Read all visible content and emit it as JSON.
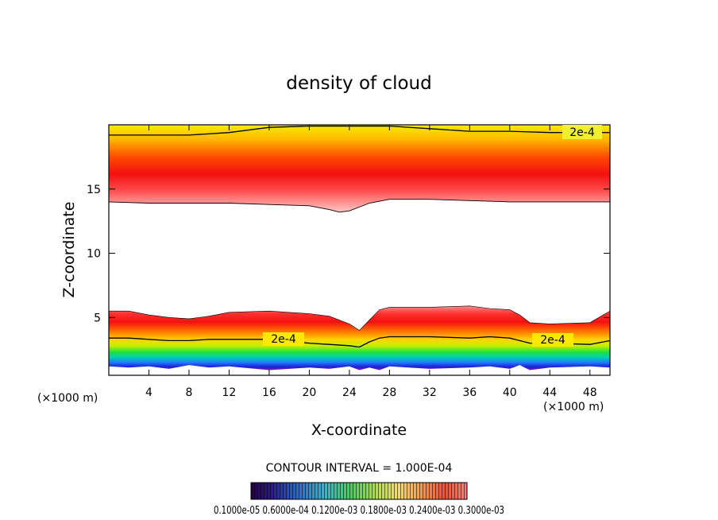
{
  "chart_data": {
    "type": "heatmap",
    "title": "density of cloud",
    "xlabel": "X-coordinate",
    "ylabel": "Z-coordinate",
    "x_unit_label": "(×1000 m)",
    "x_unit_label_right": "(×1000 m)",
    "xlim": [
      0,
      50
    ],
    "ylim": [
      0.5,
      20
    ],
    "x_ticks": [
      4,
      8,
      12,
      16,
      20,
      24,
      28,
      32,
      36,
      40,
      44,
      48
    ],
    "y_ticks": [
      5,
      10,
      15
    ],
    "contour_labels": [
      "2e-4",
      "2e-4",
      "2e-4"
    ],
    "contour_interval_text": "CONTOUR INTERVAL = 1.000E-04",
    "colorbar_labels_text": "0.1000e-05 0.6000e-04 0.1200e-03 0.1800e-03 0.2400e-03 0.3000e-03",
    "colorbar_range": [
      1e-06,
      0.0003
    ],
    "upper_layer": {
      "x": [
        0,
        4,
        8,
        12,
        16,
        20,
        22,
        23,
        24,
        26,
        28,
        32,
        36,
        40,
        44,
        48,
        50
      ],
      "bottom": [
        14.0,
        13.9,
        13.9,
        13.9,
        13.8,
        13.7,
        13.4,
        13.2,
        13.3,
        13.9,
        14.2,
        14.2,
        14.1,
        14.0,
        14.0,
        14.0,
        14.0
      ],
      "peak": [
        15.6,
        15.6,
        15.6,
        15.6,
        15.5,
        15.3,
        15.0,
        14.9,
        15.0,
        15.4,
        15.6,
        15.6,
        15.6,
        15.6,
        15.6,
        15.6,
        15.6
      ],
      "contour_2e4": [
        19.2,
        19.2,
        19.2,
        19.4,
        19.8,
        19.9,
        19.9,
        19.9,
        19.9,
        19.9,
        19.9,
        19.7,
        19.5,
        19.5,
        19.4,
        19.4,
        19.4
      ]
    },
    "lower_layer": {
      "x": [
        0,
        2,
        4,
        6,
        8,
        10,
        12,
        16,
        20,
        22,
        24,
        25,
        26,
        27,
        28,
        32,
        36,
        38,
        40,
        41,
        42,
        44,
        48,
        50
      ],
      "top": [
        5.5,
        5.5,
        5.2,
        5.0,
        4.9,
        5.1,
        5.4,
        5.5,
        5.3,
        5.1,
        4.5,
        4.0,
        4.8,
        5.6,
        5.8,
        5.8,
        5.9,
        5.7,
        5.6,
        5.2,
        4.6,
        4.5,
        4.6,
        5.5
      ],
      "contour_2e4": [
        3.4,
        3.4,
        3.3,
        3.2,
        3.2,
        3.3,
        3.3,
        3.3,
        3.0,
        2.9,
        2.8,
        2.7,
        3.1,
        3.4,
        3.5,
        3.5,
        3.4,
        3.5,
        3.4,
        3.2,
        3.0,
        3.0,
        2.9,
        3.2
      ],
      "bottom": [
        1.2,
        1.1,
        1.2,
        1.0,
        1.3,
        1.1,
        1.2,
        0.9,
        1.1,
        1.0,
        1.2,
        0.9,
        1.1,
        0.9,
        1.2,
        1.0,
        1.1,
        1.2,
        1.0,
        1.3,
        0.9,
        1.1,
        1.2,
        1.1
      ]
    }
  }
}
